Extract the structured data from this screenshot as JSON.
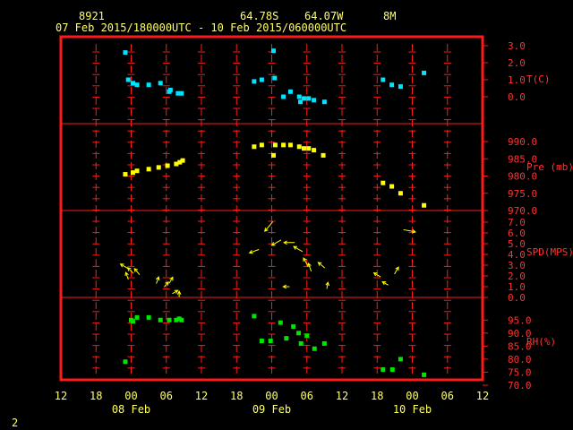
{
  "header": {
    "station_id": "8921",
    "latitude": "64.78S",
    "longitude": "64.07W",
    "elevation": "8M",
    "time_range": "07 Feb 2015/180000UTC - 10 Feb 2015/060000UTC"
  },
  "footer": {
    "page_number": "2"
  },
  "colors": {
    "frame": "#ff1a1a",
    "text_header": "#ffff66",
    "axis_text": "#ff3333",
    "temperature": "#00e5ff",
    "pressure": "#ffff00",
    "wind": "#ffff00",
    "humidity": "#00e600"
  },
  "chart_data": {
    "type": "scatter",
    "x_axis": {
      "unit": "hours since 07 Feb 2015 12 UTC",
      "range": [
        0,
        72
      ],
      "tick_labels": [
        "12",
        "18",
        "00",
        "06",
        "12",
        "18",
        "00",
        "06",
        "12",
        "18",
        "00",
        "06",
        "12"
      ],
      "tick_hours": [
        0,
        6,
        12,
        18,
        24,
        30,
        36,
        42,
        48,
        54,
        60,
        66,
        72
      ],
      "day_labels": [
        {
          "label": "08 Feb",
          "hour": 12
        },
        {
          "label": "09 Feb",
          "hour": 36
        },
        {
          "label": "10 Feb",
          "hour": 60
        }
      ]
    },
    "panels": [
      {
        "id": "temperature",
        "label": "T(C)",
        "ylim": [
          -1.0,
          3.0
        ],
        "ticks": [
          "3.0",
          "2.0",
          "1.0",
          "0.0"
        ],
        "tick_values": [
          3.0,
          2.0,
          1.0,
          0.0
        ],
        "points": [
          [
            11,
            2.6
          ],
          [
            11.5,
            1.0
          ],
          [
            12.3,
            0.8
          ],
          [
            13,
            0.7
          ],
          [
            15,
            0.7
          ],
          [
            17,
            0.8
          ],
          [
            18.5,
            0.3
          ],
          [
            18.7,
            0.4
          ],
          [
            20,
            0.2
          ],
          [
            20.6,
            0.2
          ],
          [
            33,
            0.9
          ],
          [
            34.3,
            1.0
          ],
          [
            36.3,
            2.7
          ],
          [
            36.5,
            1.1
          ],
          [
            38,
            0.0
          ],
          [
            39.2,
            0.3
          ],
          [
            40.7,
            0.0
          ],
          [
            40.9,
            -0.3
          ],
          [
            41.5,
            -0.1
          ],
          [
            42.3,
            -0.1
          ],
          [
            43.2,
            -0.2
          ],
          [
            45,
            -0.3
          ],
          [
            55,
            1.0
          ],
          [
            56.5,
            0.7
          ],
          [
            58,
            0.6
          ],
          [
            62,
            1.4
          ]
        ]
      },
      {
        "id": "pressure",
        "label": "Pre (mb)",
        "ylim": [
          970.0,
          990.0
        ],
        "ticks": [
          "990.0",
          "985.0",
          "980.0",
          "975.0",
          "970.0"
        ],
        "tick_values": [
          990.0,
          985.0,
          980.0,
          975.0,
          970.0
        ],
        "points": [
          [
            11,
            980.5
          ],
          [
            12.3,
            981
          ],
          [
            13,
            981.5
          ],
          [
            15,
            982
          ],
          [
            16.7,
            982.5
          ],
          [
            18.2,
            983
          ],
          [
            19.7,
            983.5
          ],
          [
            20.3,
            984
          ],
          [
            20.8,
            984.5
          ],
          [
            33,
            988.5
          ],
          [
            34.3,
            989
          ],
          [
            36.3,
            986
          ],
          [
            36.6,
            989
          ],
          [
            38,
            989
          ],
          [
            39.2,
            989
          ],
          [
            40.7,
            988.5
          ],
          [
            41.5,
            988
          ],
          [
            42.3,
            988
          ],
          [
            43.2,
            987.5
          ],
          [
            44.8,
            986
          ],
          [
            55,
            978
          ],
          [
            56.5,
            977
          ],
          [
            58,
            975
          ],
          [
            62,
            971.5
          ]
        ]
      },
      {
        "id": "wind",
        "label": "SPD(MPS)",
        "ylim": [
          0.0,
          7.0
        ],
        "ticks": [
          "7.0",
          "6.0",
          "5.0",
          "4.0",
          "3.0",
          "2.0",
          "1.0",
          "0.0"
        ],
        "tick_values": [
          7.0,
          6.0,
          5.0,
          4.0,
          3.0,
          2.0,
          1.0,
          0.0
        ],
        "vectors": [
          [
            10.8,
            2.9,
            300,
            2.9
          ],
          [
            11.3,
            2.0,
            340,
            2.0
          ],
          [
            11.9,
            2.5,
            315,
            2.5
          ],
          [
            13,
            2.4,
            320,
            2.5
          ],
          [
            16.5,
            1.6,
            20,
            1.6
          ],
          [
            18,
            1.2,
            40,
            1.2
          ],
          [
            18.8,
            1.6,
            30,
            1.6
          ],
          [
            19.5,
            0.5,
            60,
            1.0
          ],
          [
            20.2,
            0.3,
            0,
            0.3
          ],
          [
            33,
            4.3,
            250,
            4.3
          ],
          [
            35.5,
            6.6,
            220,
            6.6
          ],
          [
            36.8,
            5.1,
            240,
            5.1
          ],
          [
            38.5,
            1.0,
            270,
            1.0
          ],
          [
            39,
            5.1,
            270,
            5.1
          ],
          [
            40.5,
            4.5,
            300,
            4.5
          ],
          [
            41.8,
            3.3,
            330,
            3.3
          ],
          [
            42.5,
            2.8,
            340,
            2.8
          ],
          [
            44.5,
            3.0,
            310,
            3.0
          ],
          [
            45.5,
            1.1,
            10,
            1.1
          ],
          [
            54,
            2.1,
            300,
            2.1
          ],
          [
            55.4,
            1.3,
            300,
            1.3
          ],
          [
            57.3,
            2.5,
            30,
            2.5
          ],
          [
            59.5,
            6.2,
            100,
            6.2
          ]
        ]
      },
      {
        "id": "humidity",
        "label": "RH(%)",
        "ylim": [
          70.0,
          97.5
        ],
        "ticks": [
          "95.0",
          "90.0",
          "85.0",
          "80.0",
          "75.0",
          "70.0"
        ],
        "tick_values": [
          95.0,
          90.0,
          85.0,
          80.0,
          75.0,
          70.0
        ],
        "points": [
          [
            11,
            79
          ],
          [
            12,
            95
          ],
          [
            12.3,
            94.5
          ],
          [
            13,
            96
          ],
          [
            15,
            96
          ],
          [
            17,
            95
          ],
          [
            18.5,
            95
          ],
          [
            19.7,
            95
          ],
          [
            20.2,
            95.5
          ],
          [
            20.6,
            95
          ],
          [
            33,
            96.5
          ],
          [
            34.3,
            87
          ],
          [
            35.8,
            87
          ],
          [
            37.5,
            94
          ],
          [
            38.5,
            88
          ],
          [
            39.7,
            92.5
          ],
          [
            40.6,
            90
          ],
          [
            41,
            86
          ],
          [
            42,
            89
          ],
          [
            43.3,
            84
          ],
          [
            45,
            86
          ],
          [
            55,
            76
          ],
          [
            56.6,
            76
          ],
          [
            58,
            80
          ],
          [
            62,
            74
          ]
        ]
      }
    ]
  }
}
